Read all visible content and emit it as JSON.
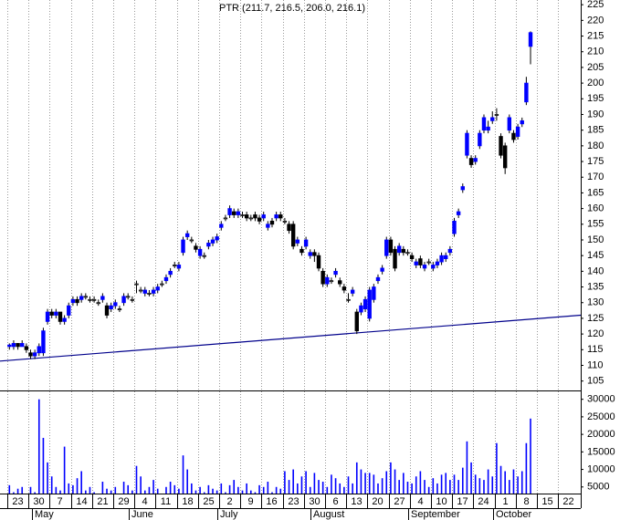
{
  "chart_data": {
    "type": "candlestick",
    "title": "PTR (211.7, 216.5, 206.0, 216.1)",
    "categories": [
      "23",
      null,
      null,
      null,
      null,
      "30",
      null,
      null,
      null,
      null,
      "7",
      null,
      null,
      null,
      null,
      "14",
      null,
      null,
      null,
      null,
      "21",
      null,
      null,
      null,
      null,
      "29",
      null,
      null,
      null,
      null,
      "4",
      null,
      null,
      null,
      null,
      "11",
      null,
      null,
      null,
      null,
      "18",
      null,
      null,
      null,
      null,
      "25",
      null,
      null,
      null,
      null,
      "2",
      null,
      null,
      null,
      null,
      "9",
      null,
      null,
      null,
      null,
      "16",
      null,
      null,
      null,
      null,
      "23",
      null,
      null,
      null,
      null,
      "30",
      null,
      null,
      null,
      null,
      "6",
      null,
      null,
      null,
      null,
      "13",
      null,
      null,
      null,
      null,
      "20",
      null,
      null,
      null,
      null,
      "27",
      null,
      null,
      null,
      null,
      "4",
      null,
      null,
      null,
      null,
      "10",
      null,
      null,
      null,
      null,
      "17",
      null,
      null,
      null,
      null,
      "24",
      null,
      null,
      null,
      null,
      "1",
      null,
      null,
      null,
      null,
      "8",
      null,
      null,
      null,
      null,
      "15",
      null,
      null,
      null,
      null,
      "22",
      null,
      null,
      null,
      null
    ],
    "months": [
      "May",
      "June",
      "July",
      "August",
      "September",
      "October"
    ],
    "open": [
      116,
      116,
      117,
      116,
      116,
      114,
      113,
      114,
      114,
      124,
      127,
      126,
      127,
      124,
      126,
      130,
      131,
      131,
      132,
      131,
      131,
      130,
      131,
      129,
      128,
      129,
      128,
      130,
      132,
      131,
      136,
      134,
      133,
      133,
      133,
      134,
      136,
      137,
      139,
      142,
      141,
      146,
      151,
      150,
      148,
      145,
      145,
      148,
      149,
      150,
      154,
      157,
      158,
      159,
      158,
      158,
      158,
      157,
      158,
      157,
      157,
      154,
      156,
      157,
      158,
      156,
      155,
      155,
      149,
      147,
      148,
      145,
      146,
      145,
      140,
      136,
      137,
      139,
      137,
      135,
      131,
      133,
      127,
      127,
      128,
      125,
      131,
      137,
      140,
      145,
      150,
      147,
      146,
      147,
      146,
      145,
      142,
      144,
      141,
      143,
      141,
      142,
      143,
      144,
      146,
      152,
      158,
      166,
      177,
      176,
      175,
      180,
      185,
      185,
      188,
      190,
      183,
      180,
      185,
      184,
      183,
      187,
      194,
      211.7,
      null,
      null,
      null,
      null,
      null,
      null,
      null,
      null,
      null,
      null,
      null
    ],
    "high": [
      117,
      118,
      117,
      118,
      117,
      115,
      115,
      117,
      122,
      128,
      128,
      128,
      127,
      126,
      130,
      132,
      132,
      133,
      133,
      132,
      132,
      131,
      133,
      130,
      130,
      131,
      129,
      133,
      133,
      132,
      137,
      135,
      135,
      134,
      135,
      136,
      137,
      139,
      141,
      143,
      143,
      151,
      153,
      151,
      149,
      148,
      146,
      150,
      151,
      152,
      156,
      158,
      161,
      160,
      160,
      159,
      159,
      158,
      159,
      158,
      159,
      156,
      157,
      159,
      159,
      157,
      156,
      156,
      151,
      148,
      151,
      147,
      147,
      146,
      141,
      139,
      138,
      141,
      138,
      136,
      133,
      135,
      128,
      130,
      132,
      135,
      136,
      139,
      142,
      151,
      151,
      148,
      149,
      148,
      147,
      146,
      144,
      145,
      143,
      144,
      143,
      144,
      146,
      146,
      148,
      157,
      160,
      168,
      185,
      177,
      177,
      185,
      190,
      188,
      191,
      192,
      184,
      181,
      190,
      185,
      187,
      189,
      202,
      216.5,
      null,
      null,
      null,
      null,
      null,
      null,
      null,
      null,
      null,
      null,
      null
    ],
    "low": [
      115,
      115,
      115,
      116,
      114,
      112,
      112,
      113,
      113,
      123,
      125,
      125,
      123,
      123,
      125,
      129,
      129,
      130,
      131,
      130,
      130,
      129,
      130,
      125,
      127,
      128,
      127,
      129,
      131,
      130,
      133,
      133,
      132,
      132,
      132,
      133,
      135,
      136,
      138,
      141,
      140,
      145,
      150,
      149,
      146,
      144,
      144,
      147,
      148,
      149,
      153,
      156,
      157,
      157,
      157,
      157,
      156,
      156,
      156,
      155,
      156,
      153,
      154,
      156,
      156,
      155,
      152,
      147,
      148,
      145,
      147,
      144,
      143,
      140,
      135,
      135,
      136,
      138,
      135,
      133,
      130,
      132,
      120,
      126,
      127,
      124,
      130,
      136,
      139,
      144,
      145,
      140,
      145,
      145,
      145,
      143,
      141,
      141,
      140,
      142,
      140,
      141,
      142,
      143,
      145,
      151,
      157,
      165,
      176,
      173,
      174,
      179,
      184,
      184,
      187,
      188,
      176,
      171,
      184,
      181,
      182,
      186,
      193,
      206.0,
      null,
      null,
      null,
      null,
      null,
      null,
      null,
      null,
      null,
      null,
      null
    ],
    "close": [
      116.5,
      117,
      116,
      117,
      115,
      113,
      114,
      116,
      121,
      127,
      126,
      127,
      124,
      125,
      129,
      131,
      130,
      132,
      132,
      131,
      131,
      130,
      132,
      126,
      129,
      130,
      128,
      132,
      132,
      131,
      136,
      134,
      134,
      133,
      134,
      135,
      136,
      138,
      140,
      142,
      142,
      150,
      152,
      150,
      147,
      147,
      145,
      149,
      150,
      151,
      155,
      157,
      160,
      158,
      159,
      158,
      157,
      157,
      157,
      156,
      158,
      155,
      155,
      158,
      157,
      156,
      153,
      148,
      150,
      146,
      150,
      146,
      145,
      141,
      136,
      138,
      137,
      140,
      136,
      134,
      131,
      134,
      121,
      129,
      131,
      134,
      135,
      138,
      141,
      150,
      146,
      141,
      148,
      146,
      146,
      144,
      143,
      142,
      142,
      143,
      142,
      143,
      145,
      145,
      147,
      156,
      159,
      167,
      184,
      174,
      176,
      184,
      189,
      186,
      189,
      190,
      177,
      173,
      189,
      182,
      186,
      188,
      200,
      216.1,
      null,
      null,
      null,
      null,
      null,
      null,
      null,
      null,
      null,
      null,
      null
    ],
    "volume": [
      5500,
      3500,
      4500,
      5000,
      2500,
      5000,
      3500,
      30000,
      19000,
      12000,
      8000,
      5000,
      4000,
      16500,
      6000,
      5500,
      7500,
      9500,
      4000,
      5000,
      3500,
      3000,
      6500,
      4500,
      4000,
      5000,
      3000,
      6500,
      5500,
      4000,
      11000,
      8000,
      4000,
      5000,
      7000,
      4500,
      3000,
      5000,
      6500,
      5500,
      4500,
      14000,
      10000,
      6000,
      4000,
      5000,
      3500,
      5500,
      4500,
      4000,
      6000,
      3500,
      5500,
      7000,
      5000,
      4000,
      6000,
      4000,
      3500,
      5500,
      5000,
      6500,
      3500,
      5000,
      4500,
      9500,
      7000,
      10000,
      6000,
      8000,
      9500,
      5000,
      9000,
      7000,
      6500,
      5000,
      8500,
      7500,
      6000,
      5000,
      8000,
      6000,
      12000,
      10000,
      9000,
      9000,
      8500,
      6000,
      7500,
      9500,
      12000,
      10000,
      7000,
      9000,
      6500,
      6000,
      8000,
      9500,
      7000,
      5000,
      7500,
      6000,
      8500,
      9000,
      7000,
      8500,
      7000,
      10500,
      18000,
      12000,
      8500,
      7500,
      7000,
      10000,
      8000,
      17500,
      11000,
      9500,
      7000,
      10000,
      8000,
      9500,
      17500,
      24500,
      null,
      null,
      null,
      null,
      null,
      null,
      null,
      null,
      null,
      null,
      null
    ],
    "up_color": "#0000ff",
    "down_color": "#000000",
    "volume_color": "#0000ff",
    "trendline_color": "#00008b",
    "ylim": [
      102,
      226.5
    ],
    "yticks": [
      105,
      110,
      115,
      120,
      125,
      130,
      135,
      140,
      145,
      150,
      155,
      160,
      165,
      170,
      175,
      180,
      185,
      190,
      195,
      200,
      205,
      210,
      215,
      220,
      225
    ],
    "y2lim": [
      1875,
      32000
    ],
    "y2ticks": [
      5000,
      10000,
      15000,
      20000,
      25000,
      30000
    ],
    "trendline": {
      "start": [
        0,
        111.6
      ],
      "end": [
        134,
        125.9
      ]
    },
    "grid": true
  }
}
